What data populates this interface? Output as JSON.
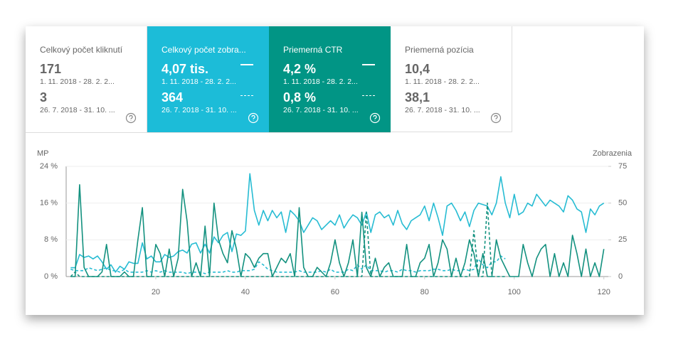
{
  "cards": [
    {
      "title": "Celkový počet kliknutí",
      "value": "171",
      "range": "1. 11. 2018 - 28. 2. 2...",
      "value2": "3",
      "range2": "26. 7. 2018 - 31. 10. ..."
    },
    {
      "title": "Celkový počet zobra...",
      "value": "4,07 tis.",
      "range": "1. 11. 2018 - 28. 2. 2...",
      "value2": "364",
      "range2": "26. 7. 2018 - 31. 10. ..."
    },
    {
      "title": "Priemerná CTR",
      "value": "4,2 %",
      "range": "1. 11. 2018 - 28. 2. 2...",
      "value2": "0,8 %",
      "range2": "26. 7. 2018 - 31. 10. ..."
    },
    {
      "title": "Priemerná pozícia",
      "value": "10,4",
      "range": "1. 11. 2018 - 28. 2. 2...",
      "value2": "38,1",
      "range2": "26. 7. 2018 - 31. 10. ..."
    }
  ],
  "chart_data": {
    "type": "line",
    "y_label": "MP",
    "y2_label": "Zobrazenia",
    "x": [
      1,
      2,
      3,
      4,
      5,
      6,
      7,
      8,
      9,
      10,
      11,
      12,
      13,
      14,
      15,
      16,
      17,
      18,
      19,
      20,
      21,
      22,
      23,
      24,
      25,
      26,
      27,
      28,
      29,
      30,
      31,
      32,
      33,
      34,
      35,
      36,
      37,
      38,
      39,
      40,
      41,
      42,
      43,
      44,
      45,
      46,
      47,
      48,
      49,
      50,
      51,
      52,
      53,
      54,
      55,
      56,
      57,
      58,
      59,
      60,
      61,
      62,
      63,
      64,
      65,
      66,
      67,
      68,
      69,
      70,
      71,
      72,
      73,
      74,
      75,
      76,
      77,
      78,
      79,
      80,
      81,
      82,
      83,
      84,
      85,
      86,
      87,
      88,
      89,
      90,
      91,
      92,
      93,
      94,
      95,
      96,
      97,
      98,
      99,
      100,
      101,
      102,
      103,
      104,
      105,
      106,
      107,
      108,
      109,
      110,
      111,
      112,
      113,
      114,
      115,
      116,
      117,
      118,
      119,
      120
    ],
    "xlim": [
      0,
      121
    ],
    "xticks": [
      20,
      40,
      60,
      80,
      100,
      120
    ],
    "ylim": [
      0,
      24
    ],
    "yticks": [
      {
        "value": 0,
        "label": "0 %"
      },
      {
        "value": 8,
        "label": "8 %"
      },
      {
        "value": 16,
        "label": "16 %"
      },
      {
        "value": 24,
        "label": "24 %"
      }
    ],
    "y2lim": [
      0,
      75
    ],
    "y2ticks": [
      0,
      25,
      50,
      75
    ],
    "grid": true,
    "series": [
      {
        "color": "#27bcd3",
        "axis": "y2",
        "dashed": false,
        "values": [
          6,
          6,
          15,
          13,
          14,
          12,
          14,
          10,
          5,
          8,
          3,
          7,
          5,
          10,
          9,
          9,
          23,
          12,
          14,
          10,
          10,
          15,
          13,
          14,
          17,
          18,
          16,
          22,
          23,
          16,
          22,
          16,
          27,
          23,
          28,
          30,
          17,
          29,
          28,
          31,
          70,
          45,
          35,
          45,
          38,
          45,
          40,
          44,
          30,
          45,
          42,
          38,
          30,
          35,
          40,
          38,
          32,
          35,
          38,
          35,
          42,
          33,
          38,
          42,
          40,
          35,
          44,
          30,
          42,
          44,
          40,
          42,
          35,
          45,
          36,
          32,
          38,
          40,
          42,
          48,
          38,
          50,
          40,
          28,
          48,
          50,
          45,
          38,
          44,
          34,
          45,
          50,
          49,
          48,
          42,
          50,
          68,
          50,
          40,
          56,
          42,
          44,
          50,
          48,
          56,
          52,
          48,
          52,
          50,
          48,
          44,
          55,
          52,
          46,
          44,
          30,
          46,
          42,
          48,
          50
        ]
      },
      {
        "color": "#27bcd3",
        "axis": "y2",
        "dashed": true,
        "values": [
          5,
          4,
          4,
          4,
          6,
          5,
          4,
          5,
          6,
          4,
          4,
          3,
          5,
          3,
          3,
          3,
          3,
          4,
          3,
          4,
          3,
          4,
          3,
          3,
          3,
          3,
          2,
          3,
          3,
          3,
          2,
          3,
          3,
          3,
          3,
          4,
          3,
          3,
          4,
          4,
          4,
          5,
          10,
          8,
          5,
          4,
          3,
          3,
          3,
          3,
          3,
          4,
          3,
          3,
          3,
          3,
          4,
          3,
          5,
          3,
          3,
          3,
          5,
          4,
          8,
          5,
          8,
          4,
          4,
          4,
          3,
          4,
          4,
          3,
          5,
          4,
          4,
          3,
          4,
          4,
          4,
          5,
          5,
          4,
          4,
          5,
          4,
          4,
          5,
          4,
          5,
          12,
          8,
          6,
          10,
          10,
          14,
          12,
          null,
          null,
          null,
          null,
          null,
          null,
          null,
          null,
          null,
          null,
          null,
          null,
          null,
          null,
          null,
          null,
          null,
          null,
          null,
          null,
          null,
          null
        ]
      },
      {
        "color": "#13917f",
        "axis": "y",
        "dashed": false,
        "values": [
          0,
          0,
          20,
          2,
          0,
          0,
          0,
          1,
          7,
          0,
          0,
          0,
          1,
          0,
          0,
          8,
          15,
          0,
          0,
          7,
          5,
          0,
          6,
          0,
          4,
          19,
          12,
          0,
          3,
          0,
          11,
          0,
          16,
          8,
          5,
          3,
          10,
          6,
          0,
          5,
          4,
          2,
          4,
          5,
          5,
          0,
          2,
          4,
          3,
          5,
          0,
          15,
          2,
          0,
          0,
          2,
          1,
          0,
          3,
          8,
          3,
          0,
          3,
          8,
          0,
          14,
          2,
          0,
          4,
          0,
          2,
          3,
          0,
          0,
          0,
          7,
          0,
          0,
          3,
          4,
          7,
          0,
          3,
          8,
          6,
          0,
          4,
          0,
          3,
          8,
          5,
          0,
          5,
          0,
          0,
          8,
          4,
          2,
          0,
          0,
          0,
          7,
          3,
          0,
          4,
          6,
          7,
          0,
          5,
          0,
          3,
          0,
          9,
          5,
          0,
          6,
          0,
          3,
          0,
          6
        ]
      },
      {
        "color": "#13917f",
        "axis": "y",
        "dashed": true,
        "values": [
          0,
          1,
          0,
          0,
          0,
          0,
          0,
          0,
          0,
          0,
          0,
          0,
          0,
          0,
          0,
          0,
          0,
          0,
          0,
          0,
          0,
          0,
          0,
          0,
          0,
          0,
          0,
          0,
          0,
          0,
          0,
          0,
          0,
          0,
          0,
          0,
          0,
          0,
          0,
          0,
          0,
          0,
          0,
          0,
          0,
          0,
          0,
          0,
          0,
          0,
          0,
          0,
          0,
          0,
          0,
          0,
          0,
          0,
          0,
          0,
          0,
          0,
          0,
          0,
          0,
          0,
          14,
          0,
          0,
          0,
          0,
          0,
          0,
          0,
          0,
          0,
          0,
          0,
          0,
          0,
          0,
          0,
          0,
          0,
          0,
          0,
          0,
          0,
          0,
          0,
          10,
          0,
          0,
          16,
          0,
          0,
          0,
          0,
          null,
          null,
          null,
          null,
          null,
          null,
          null,
          null,
          null,
          null,
          null,
          null,
          null,
          null,
          null,
          null,
          null,
          null,
          null,
          null,
          null,
          null
        ]
      }
    ]
  }
}
